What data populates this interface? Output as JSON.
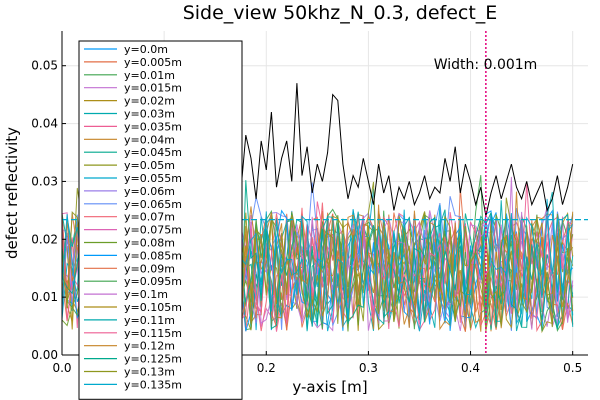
{
  "chart_data": {
    "type": "line",
    "title": "Side_view 50khz_N_0.3, defect_E",
    "xlabel": "y-axis [m]",
    "ylabel": "defect reflectivity",
    "xlim": [
      0.0,
      0.515
    ],
    "ylim": [
      0.0,
      0.056
    ],
    "x_ticks": [
      {
        "value": 0.0,
        "label": "0.0"
      },
      {
        "value": 0.1,
        "label": "0.1"
      },
      {
        "value": 0.2,
        "label": "0.2"
      },
      {
        "value": 0.3,
        "label": "0.3"
      },
      {
        "value": 0.4,
        "label": "0.4"
      },
      {
        "value": 0.5,
        "label": "0.5"
      }
    ],
    "y_ticks": [
      {
        "value": 0.0,
        "label": "0.00"
      },
      {
        "value": 0.01,
        "label": "0.01"
      },
      {
        "value": 0.02,
        "label": "0.02"
      },
      {
        "value": 0.03,
        "label": "0.03"
      },
      {
        "value": 0.04,
        "label": "0.04"
      },
      {
        "value": 0.05,
        "label": "0.05"
      }
    ],
    "grid": true,
    "legend_position": "top-left",
    "x_samples": {
      "start": 0.0,
      "stop": 0.5,
      "step": 0.005
    },
    "series": [
      {
        "name": "y=0.0m",
        "color": "#009AFA"
      },
      {
        "name": "y=0.005m",
        "color": "#E36F47"
      },
      {
        "name": "y=0.01m",
        "color": "#3EA44E"
      },
      {
        "name": "y=0.015m",
        "color": "#C371D2"
      },
      {
        "name": "y=0.02m",
        "color": "#AC8E18"
      },
      {
        "name": "y=0.03m",
        "color": "#00AAAE"
      },
      {
        "name": "y=0.035m",
        "color": "#ED5E93"
      },
      {
        "name": "y=0.04m",
        "color": "#C68225"
      },
      {
        "name": "y=0.045m",
        "color": "#00A98D"
      },
      {
        "name": "y=0.05m",
        "color": "#8E971E"
      },
      {
        "name": "y=0.055m",
        "color": "#00A9CD"
      },
      {
        "name": "y=0.06m",
        "color": "#9B7FE9"
      },
      {
        "name": "y=0.065m",
        "color": "#618DF6"
      },
      {
        "name": "y=0.07m",
        "color": "#F16273"
      },
      {
        "name": "y=0.075m",
        "color": "#DD64B5"
      },
      {
        "name": "y=0.08m",
        "color": "#6B9D29"
      },
      {
        "name": "y=0.085m",
        "color": "#009AFA"
      },
      {
        "name": "y=0.09m",
        "color": "#E36F47"
      },
      {
        "name": "y=0.095m",
        "color": "#3EA44E"
      },
      {
        "name": "y=0.1m",
        "color": "#C371D2"
      },
      {
        "name": "y=0.105m",
        "color": "#AC8E18"
      },
      {
        "name": "y=0.11m",
        "color": "#00AAAE"
      },
      {
        "name": "y=0.115m",
        "color": "#ED5E93"
      },
      {
        "name": "y=0.12m",
        "color": "#C68225"
      },
      {
        "name": "y=0.125m",
        "color": "#00A98D"
      },
      {
        "name": "y=0.13m",
        "color": "#8E971E"
      },
      {
        "name": "y=0.135m",
        "color": "#00A9CD"
      }
    ],
    "upper_envelope": {
      "color": "#000000",
      "points": [
        {
          "x": 0.16,
          "y": 0.03
        },
        {
          "x": 0.165,
          "y": 0.033
        },
        {
          "x": 0.17,
          "y": 0.04
        },
        {
          "x": 0.175,
          "y": 0.028
        },
        {
          "x": 0.18,
          "y": 0.038
        },
        {
          "x": 0.185,
          "y": 0.034
        },
        {
          "x": 0.19,
          "y": 0.027
        },
        {
          "x": 0.195,
          "y": 0.037
        },
        {
          "x": 0.2,
          "y": 0.032
        },
        {
          "x": 0.205,
          "y": 0.042
        },
        {
          "x": 0.21,
          "y": 0.029
        },
        {
          "x": 0.215,
          "y": 0.034
        },
        {
          "x": 0.22,
          "y": 0.037
        },
        {
          "x": 0.225,
          "y": 0.03
        },
        {
          "x": 0.23,
          "y": 0.047
        },
        {
          "x": 0.235,
          "y": 0.031
        },
        {
          "x": 0.24,
          "y": 0.036
        },
        {
          "x": 0.245,
          "y": 0.028
        },
        {
          "x": 0.25,
          "y": 0.033
        },
        {
          "x": 0.255,
          "y": 0.03
        },
        {
          "x": 0.26,
          "y": 0.035
        },
        {
          "x": 0.265,
          "y": 0.045
        },
        {
          "x": 0.27,
          "y": 0.044
        },
        {
          "x": 0.275,
          "y": 0.033
        },
        {
          "x": 0.28,
          "y": 0.027
        },
        {
          "x": 0.285,
          "y": 0.031
        },
        {
          "x": 0.29,
          "y": 0.029
        },
        {
          "x": 0.295,
          "y": 0.034
        },
        {
          "x": 0.3,
          "y": 0.03
        },
        {
          "x": 0.305,
          "y": 0.026
        },
        {
          "x": 0.31,
          "y": 0.033
        },
        {
          "x": 0.315,
          "y": 0.028
        },
        {
          "x": 0.32,
          "y": 0.031
        },
        {
          "x": 0.325,
          "y": 0.025
        },
        {
          "x": 0.33,
          "y": 0.029
        },
        {
          "x": 0.335,
          "y": 0.027
        },
        {
          "x": 0.34,
          "y": 0.03
        },
        {
          "x": 0.345,
          "y": 0.026
        },
        {
          "x": 0.35,
          "y": 0.028
        },
        {
          "x": 0.355,
          "y": 0.031
        },
        {
          "x": 0.36,
          "y": 0.027
        },
        {
          "x": 0.365,
          "y": 0.029
        },
        {
          "x": 0.37,
          "y": 0.028
        },
        {
          "x": 0.375,
          "y": 0.034
        },
        {
          "x": 0.38,
          "y": 0.03
        },
        {
          "x": 0.385,
          "y": 0.036
        },
        {
          "x": 0.39,
          "y": 0.028
        },
        {
          "x": 0.395,
          "y": 0.033
        },
        {
          "x": 0.4,
          "y": 0.03
        },
        {
          "x": 0.405,
          "y": 0.026
        },
        {
          "x": 0.41,
          "y": 0.029
        },
        {
          "x": 0.415,
          "y": 0.024
        },
        {
          "x": 0.42,
          "y": 0.028
        },
        {
          "x": 0.425,
          "y": 0.031
        },
        {
          "x": 0.43,
          "y": 0.027
        },
        {
          "x": 0.435,
          "y": 0.03
        },
        {
          "x": 0.44,
          "y": 0.033
        },
        {
          "x": 0.445,
          "y": 0.029
        },
        {
          "x": 0.45,
          "y": 0.027
        },
        {
          "x": 0.455,
          "y": 0.03
        },
        {
          "x": 0.46,
          "y": 0.026
        },
        {
          "x": 0.465,
          "y": 0.028
        },
        {
          "x": 0.47,
          "y": 0.03
        },
        {
          "x": 0.475,
          "y": 0.025
        },
        {
          "x": 0.48,
          "y": 0.027
        },
        {
          "x": 0.485,
          "y": 0.031
        },
        {
          "x": 0.49,
          "y": 0.026
        },
        {
          "x": 0.495,
          "y": 0.029
        },
        {
          "x": 0.5,
          "y": 0.033
        }
      ]
    },
    "vertical_line": {
      "x": 0.415,
      "color": "#E3007A",
      "style": "dotted"
    },
    "horizontal_line": {
      "y": 0.0234,
      "color": "#00A9CD",
      "style": "dashed"
    },
    "annotation": {
      "text": "Width: 0.001m",
      "x": 0.41,
      "y": 0.051
    }
  }
}
